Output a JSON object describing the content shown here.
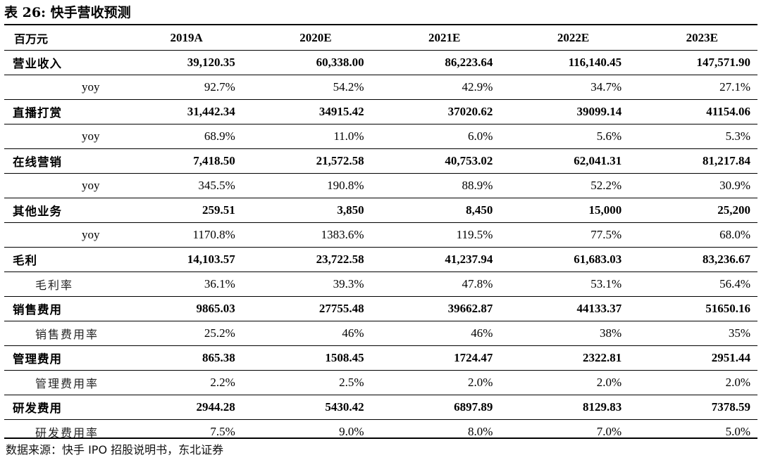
{
  "title": "表 26: 快手营收预测",
  "header": [
    "百万元",
    "2019A",
    "2020E",
    "2021E",
    "2022E",
    "2023E"
  ],
  "rows": [
    {
      "label": "营业收入",
      "kind": "main",
      "values": [
        "39,120.35",
        "60,338.00",
        "86,223.64",
        "116,140.45",
        "147,571.90"
      ]
    },
    {
      "label": "yoy",
      "kind": "yoy",
      "values": [
        "92.7%",
        "54.2%",
        "42.9%",
        "34.7%",
        "27.1%"
      ]
    },
    {
      "label": "直播打赏",
      "kind": "main",
      "values": [
        "31,442.34",
        "34915.42",
        "37020.62",
        "39099.14",
        "41154.06"
      ]
    },
    {
      "label": "yoy",
      "kind": "yoy",
      "values": [
        "68.9%",
        "11.0%",
        "6.0%",
        "5.6%",
        "5.3%"
      ]
    },
    {
      "label": "在线营销",
      "kind": "main",
      "values": [
        "7,418.50",
        "21,572.58",
        "40,753.02",
        "62,041.31",
        "81,217.84"
      ]
    },
    {
      "label": "yoy",
      "kind": "yoy",
      "values": [
        "345.5%",
        "190.8%",
        "88.9%",
        "52.2%",
        "30.9%"
      ]
    },
    {
      "label": "其他业务",
      "kind": "main",
      "values": [
        "259.51",
        "3,850",
        "8,450",
        "15,000",
        "25,200"
      ]
    },
    {
      "label": "yoy",
      "kind": "yoy",
      "values": [
        "1170.8%",
        "1383.6%",
        "119.5%",
        "77.5%",
        "68.0%"
      ]
    },
    {
      "label": "毛利",
      "kind": "main",
      "values": [
        "14,103.57",
        "23,722.58",
        "41,237.94",
        "61,683.03",
        "83,236.67"
      ]
    },
    {
      "label": "毛利率",
      "kind": "rate",
      "values": [
        "36.1%",
        "39.3%",
        "47.8%",
        "53.1%",
        "56.4%"
      ]
    },
    {
      "label": "销售费用",
      "kind": "main",
      "values": [
        "9865.03",
        "27755.48",
        "39662.87",
        "44133.37",
        "51650.16"
      ]
    },
    {
      "label": "销售费用率",
      "kind": "rate",
      "values": [
        "25.2%",
        "46%",
        "46%",
        "38%",
        "35%"
      ]
    },
    {
      "label": "管理费用",
      "kind": "main",
      "values": [
        "865.38",
        "1508.45",
        "1724.47",
        "2322.81",
        "2951.44"
      ]
    },
    {
      "label": "管理费用率",
      "kind": "rate",
      "values": [
        "2.2%",
        "2.5%",
        "2.0%",
        "2.0%",
        "2.0%"
      ]
    },
    {
      "label": "研发费用",
      "kind": "main",
      "values": [
        "2944.28",
        "5430.42",
        "6897.89",
        "8129.83",
        "7378.59"
      ]
    },
    {
      "label": "研发费用率",
      "kind": "rate",
      "values": [
        "7.5%",
        "9.0%",
        "8.0%",
        "7.0%",
        "5.0%"
      ]
    }
  ],
  "source": "数据来源：快手 IPO 招股说明书，东北证券"
}
